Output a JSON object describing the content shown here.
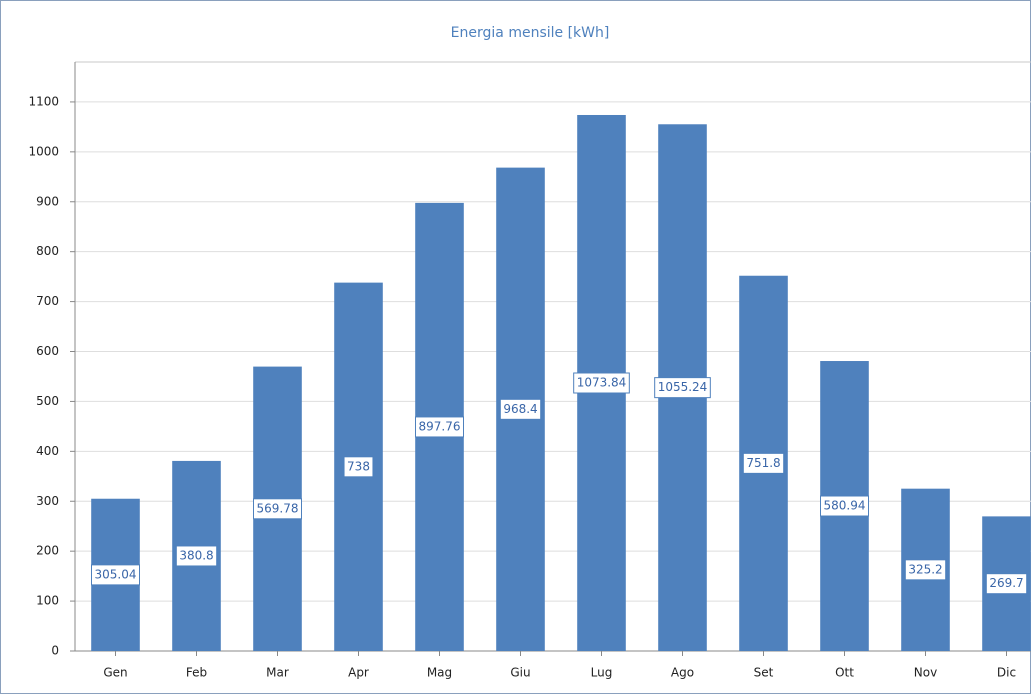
{
  "chart_data": {
    "type": "bar",
    "title": "Energia mensile [kWh]",
    "categories": [
      "Gen",
      "Feb",
      "Mar",
      "Apr",
      "Mag",
      "Giu",
      "Lug",
      "Ago",
      "Set",
      "Ott",
      "Nov",
      "Dic"
    ],
    "values": [
      305.04,
      380.8,
      569.78,
      738,
      897.76,
      968.4,
      1073.84,
      1055.24,
      751.8,
      580.94,
      325.2,
      269.7
    ],
    "color": "#4f81bd",
    "ylim": [
      0,
      1180
    ],
    "yticks": [
      0,
      100,
      200,
      300,
      400,
      500,
      600,
      700,
      800,
      900,
      1000,
      1100
    ],
    "grid": true
  }
}
